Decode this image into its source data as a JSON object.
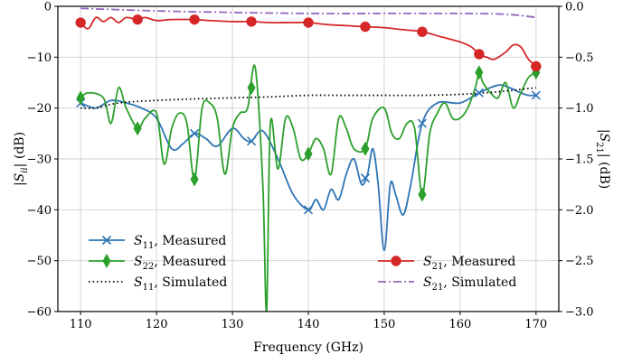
{
  "chart_data": {
    "type": "line",
    "xlabel": "Frequency (GHz)",
    "ylabel_left": "|S_ii| (dB)",
    "ylabel_right": "|S_21| (dB)",
    "xlim": [
      107,
      173
    ],
    "ylim_left": [
      -60,
      0
    ],
    "ylim_right": [
      -3.0,
      0.0
    ],
    "grid": true,
    "x_ticks": [
      {
        "value": 110,
        "label": "110"
      },
      {
        "value": 120,
        "label": "120"
      },
      {
        "value": 130,
        "label": "130"
      },
      {
        "value": 140,
        "label": "140"
      },
      {
        "value": 150,
        "label": "150"
      },
      {
        "value": 160,
        "label": "160"
      },
      {
        "value": 170,
        "label": "170"
      }
    ],
    "y_ticks_left": [
      {
        "value": 0,
        "label": "0"
      },
      {
        "value": -10,
        "label": "−10"
      },
      {
        "value": -20,
        "label": "−20"
      },
      {
        "value": -30,
        "label": "−30"
      },
      {
        "value": -40,
        "label": "−40"
      },
      {
        "value": -50,
        "label": "−50"
      },
      {
        "value": -60,
        "label": "−60"
      }
    ],
    "y_ticks_right": [
      {
        "value": 0.0,
        "label": "0.0"
      },
      {
        "value": -0.5,
        "label": "−0.5"
      },
      {
        "value": -1.0,
        "label": "−1.0"
      },
      {
        "value": -1.5,
        "label": "−1.5"
      },
      {
        "value": -2.0,
        "label": "−2.0"
      },
      {
        "value": -2.5,
        "label": "−2.5"
      },
      {
        "value": -3.0,
        "label": "−3.0"
      }
    ],
    "legend_left_placement": "lower-left",
    "legend_right_placement": "lower-right",
    "series": [
      {
        "name_main": "S",
        "name_sub": "11",
        "name_suffix": ", Measured",
        "axis": "left",
        "color": "#2e75b6",
        "dash": "solid",
        "marker": "x",
        "x": [
          110,
          112,
          114,
          116,
          118,
          120,
          122,
          123.5,
          125,
          126.5,
          128,
          130,
          131.5,
          132.5,
          134,
          136,
          138,
          140,
          141,
          142,
          143,
          144,
          145,
          146,
          147,
          147.8,
          148.5,
          149.2,
          150,
          150.8,
          151.5,
          152.5,
          153.5,
          155,
          157,
          160,
          162.5,
          165,
          166.5,
          168,
          169,
          170
        ],
        "y": [
          -19,
          -20,
          -18.5,
          -19,
          -20,
          -22,
          -28,
          -27,
          -25,
          -26,
          -27.5,
          -24,
          -26,
          -26.5,
          -24.5,
          -30,
          -37,
          -40,
          -38,
          -40,
          -36,
          -38,
          -33,
          -30,
          -35,
          -33,
          -28,
          -35,
          -48,
          -35,
          -37,
          -41,
          -35,
          -23,
          -19,
          -19,
          -17,
          -15.5,
          -16,
          -17,
          -17.5,
          -17.5
        ],
        "marker_x": [
          110,
          125,
          132.5,
          140,
          147.5,
          155,
          162.5,
          170
        ]
      },
      {
        "name_main": "S",
        "name_sub": "22",
        "name_suffix": ", Measured",
        "axis": "left",
        "color": "#2ca02c",
        "dash": "solid",
        "marker": "diamond",
        "x": [
          110,
          111,
          113,
          114,
          115,
          116,
          117.5,
          118.5,
          120,
          121,
          122,
          123,
          124,
          125,
          126,
          127,
          128,
          129,
          130,
          131,
          132,
          133,
          134,
          134.5,
          135,
          136,
          137,
          138,
          139,
          140,
          141,
          142,
          143,
          144,
          145,
          146,
          147.5,
          148.5,
          150,
          151,
          152,
          153,
          154,
          155,
          156,
          157,
          158,
          159,
          160,
          161,
          162,
          162.5,
          163,
          164,
          165,
          166,
          167,
          168,
          169,
          170
        ],
        "y": [
          -18,
          -17,
          -18,
          -23,
          -16,
          -20,
          -24,
          -22,
          -21,
          -31,
          -24,
          -21,
          -23,
          -34,
          -20,
          -19,
          -22,
          -33,
          -24,
          -21,
          -20,
          -12,
          -35,
          -60,
          -23,
          -32,
          -22,
          -24,
          -30,
          -29,
          -26,
          -28,
          -33,
          -22,
          -24,
          -28,
          -28,
          -22,
          -20,
          -25,
          -26,
          -23,
          -24,
          -37,
          -25,
          -21,
          -19,
          -22,
          -22,
          -20,
          -16,
          -13,
          -15,
          -17,
          -18,
          -15,
          -20,
          -17,
          -14,
          -13
        ],
        "marker_x": [
          110,
          117.5,
          125,
          132.5,
          140,
          147.5,
          155,
          162.5,
          170
        ]
      },
      {
        "name_main": "S",
        "name_sub": "11",
        "name_suffix": ", Simulated",
        "axis": "left",
        "color": "#000000",
        "dash": "dotted",
        "marker": "none",
        "x": [
          110,
          112,
          115,
          120,
          125,
          130,
          135,
          140,
          145,
          150,
          155,
          160,
          165,
          170
        ],
        "y": [
          -20,
          -20,
          -19,
          -18.5,
          -18.2,
          -18,
          -17.8,
          -17.5,
          -17.5,
          -17.5,
          -17.5,
          -17.3,
          -16.8,
          -16
        ],
        "marker_x": []
      },
      {
        "name_main": "S",
        "name_sub": "21",
        "name_suffix": ", Measured",
        "axis": "right",
        "color": "#d62728",
        "dash": "solid",
        "marker": "circle",
        "x": [
          110,
          111,
          112,
          113,
          114,
          115,
          116,
          117.5,
          118.5,
          120,
          122,
          125,
          127,
          130,
          132.5,
          135,
          137.5,
          140,
          142.5,
          145,
          147.5,
          150,
          152.5,
          155,
          157.5,
          160,
          161.5,
          162.5,
          163.5,
          164.5,
          166,
          167,
          168,
          169,
          170
        ],
        "y": [
          -0.16,
          -0.22,
          -0.11,
          -0.15,
          -0.11,
          -0.16,
          -0.11,
          -0.13,
          -0.11,
          -0.14,
          -0.13,
          -0.13,
          -0.14,
          -0.15,
          -0.15,
          -0.16,
          -0.16,
          -0.16,
          -0.18,
          -0.19,
          -0.2,
          -0.21,
          -0.23,
          -0.25,
          -0.3,
          -0.35,
          -0.4,
          -0.47,
          -0.5,
          -0.52,
          -0.45,
          -0.38,
          -0.4,
          -0.52,
          -0.59
        ],
        "marker_x": [
          110,
          117.5,
          125,
          132.5,
          140,
          147.5,
          155,
          162.5,
          170
        ]
      },
      {
        "name_main": "S",
        "name_sub": "21",
        "name_suffix": ", Simulated",
        "axis": "right",
        "color": "#9467bd",
        "dash": "dashdot",
        "marker": "none",
        "x": [
          110,
          120,
          130,
          140,
          150,
          160,
          165,
          168,
          170
        ],
        "y": [
          -0.02,
          -0.045,
          -0.06,
          -0.07,
          -0.07,
          -0.07,
          -0.075,
          -0.09,
          -0.11
        ],
        "marker_x": []
      }
    ]
  }
}
